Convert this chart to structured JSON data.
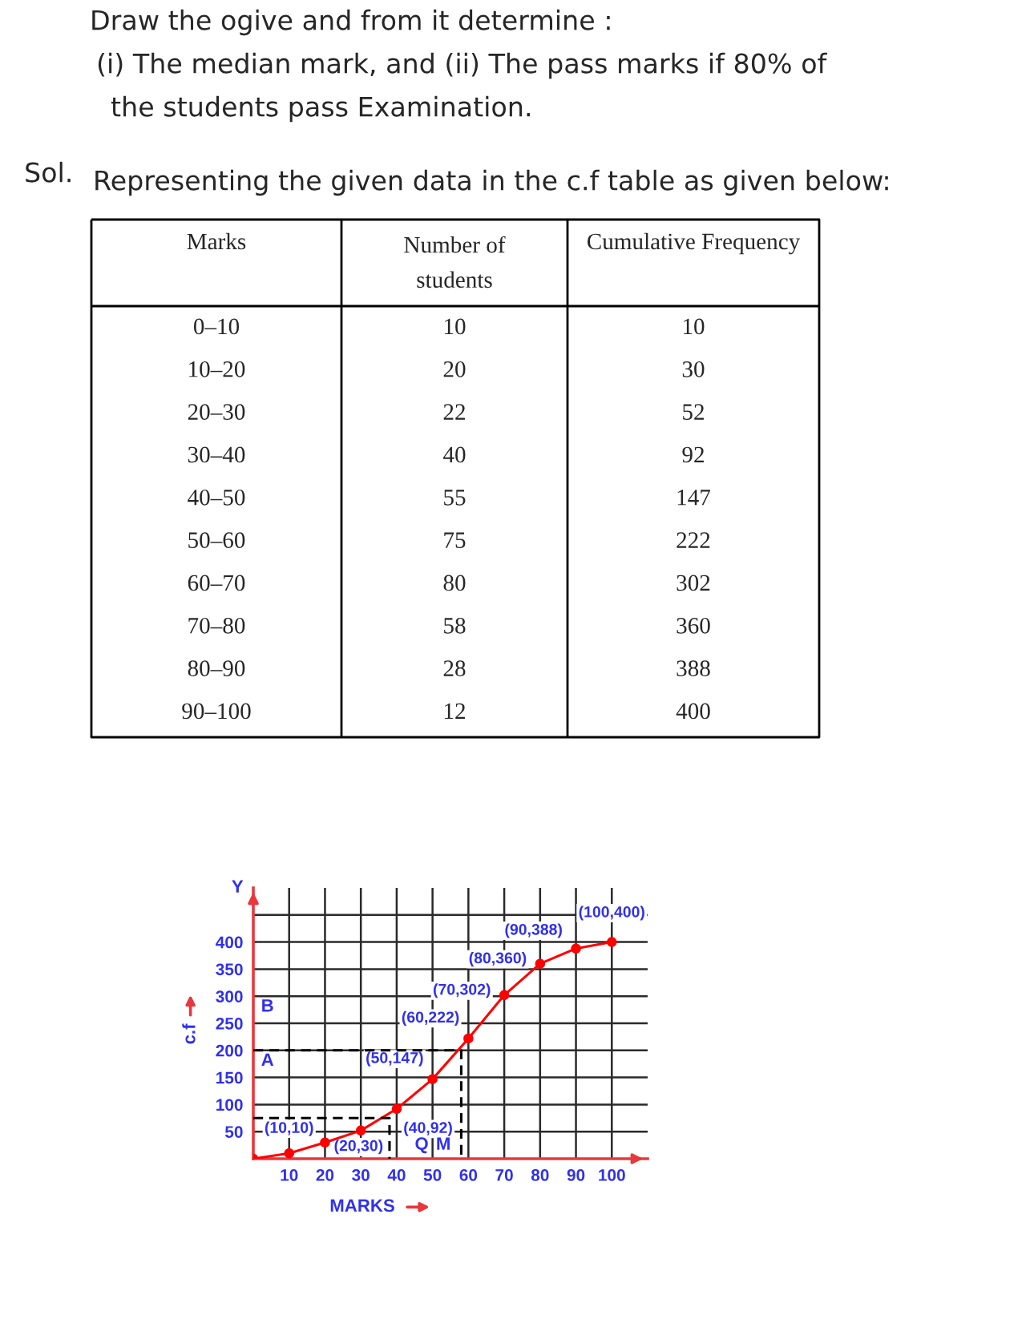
{
  "chart_data": [
    {
      "type": "other",
      "annotations": [
        "Draw the ogive and from it determine :",
        "(i) The median mark, and (ii) The pass marks if 80% of",
        "the students pass Examination.",
        "Sol.",
        "Representing the given data in the c.f table as given below:"
      ],
      "xlabel": "Marks",
      "categories": [
        "0–10",
        "10–20",
        "20–30",
        "30–40",
        "40–50",
        "50–60",
        "60–70",
        "70–80",
        "80–90",
        "90–100"
      ],
      "series": [
        {
          "name": "Number of students",
          "values": [
            10,
            20,
            22,
            40,
            55,
            75,
            80,
            58,
            28,
            12
          ]
        },
        {
          "name": "Cumulative Frequency",
          "values": [
            10,
            30,
            52,
            92,
            147,
            222,
            302,
            360,
            388,
            400
          ]
        }
      ],
      "data_labels": true
    },
    {
      "type": "line",
      "x": [
        0,
        10,
        20,
        30,
        40,
        50,
        60,
        70,
        80,
        90,
        100
      ],
      "xlabel": "MARKS",
      "ylabel": "c.f",
      "xlim": [
        0,
        110
      ],
      "ylim": [
        0,
        500
      ],
      "xticks": [
        10,
        20,
        30,
        40,
        50,
        60,
        70,
        80,
        90,
        100
      ],
      "yticks": [
        50,
        100,
        150,
        200,
        250,
        300,
        350,
        400,
        {
          "value": 450,
          "label": null
        }
      ],
      "grid": true,
      "series": [
        {
          "type": "line",
          "color": "#ff0000",
          "marker": "circle",
          "line_style": "solid",
          "values": [
            0,
            10,
            30,
            52,
            92,
            147,
            222,
            302,
            360,
            388,
            400
          ]
        },
        {
          "type": "line",
          "color": "#000000",
          "marker": "none",
          "line_style": "dashed",
          "x": [
            0,
            58,
            58
          ],
          "values": [
            200,
            200,
            0
          ]
        },
        {
          "type": "line",
          "color": "#000000",
          "marker": "none",
          "line_style": "dashed",
          "x": [
            0,
            38,
            38
          ],
          "values": [
            75,
            75,
            0
          ]
        }
      ],
      "annotations": [
        "Y",
        "A",
        "B",
        "Q",
        "M",
        {
          "text": "(10,10)",
          "x": 10,
          "y": 10
        },
        {
          "text": "(20,30)",
          "x": 20,
          "y": 30
        },
        {
          "text": "(40,92)",
          "x": 40,
          "y": 92
        },
        {
          "text": "(50,147)",
          "x": 50,
          "y": 147
        },
        {
          "text": "(60,222)",
          "x": 60,
          "y": 222
        },
        {
          "text": "(70,302)",
          "x": 70,
          "y": 302
        },
        {
          "text": "(80,360)",
          "x": 80,
          "y": 360
        },
        {
          "text": "(90,388)",
          "x": 90,
          "y": 388
        },
        {
          "text": "(100,400)",
          "x": 100,
          "y": 400
        }
      ]
    }
  ]
}
